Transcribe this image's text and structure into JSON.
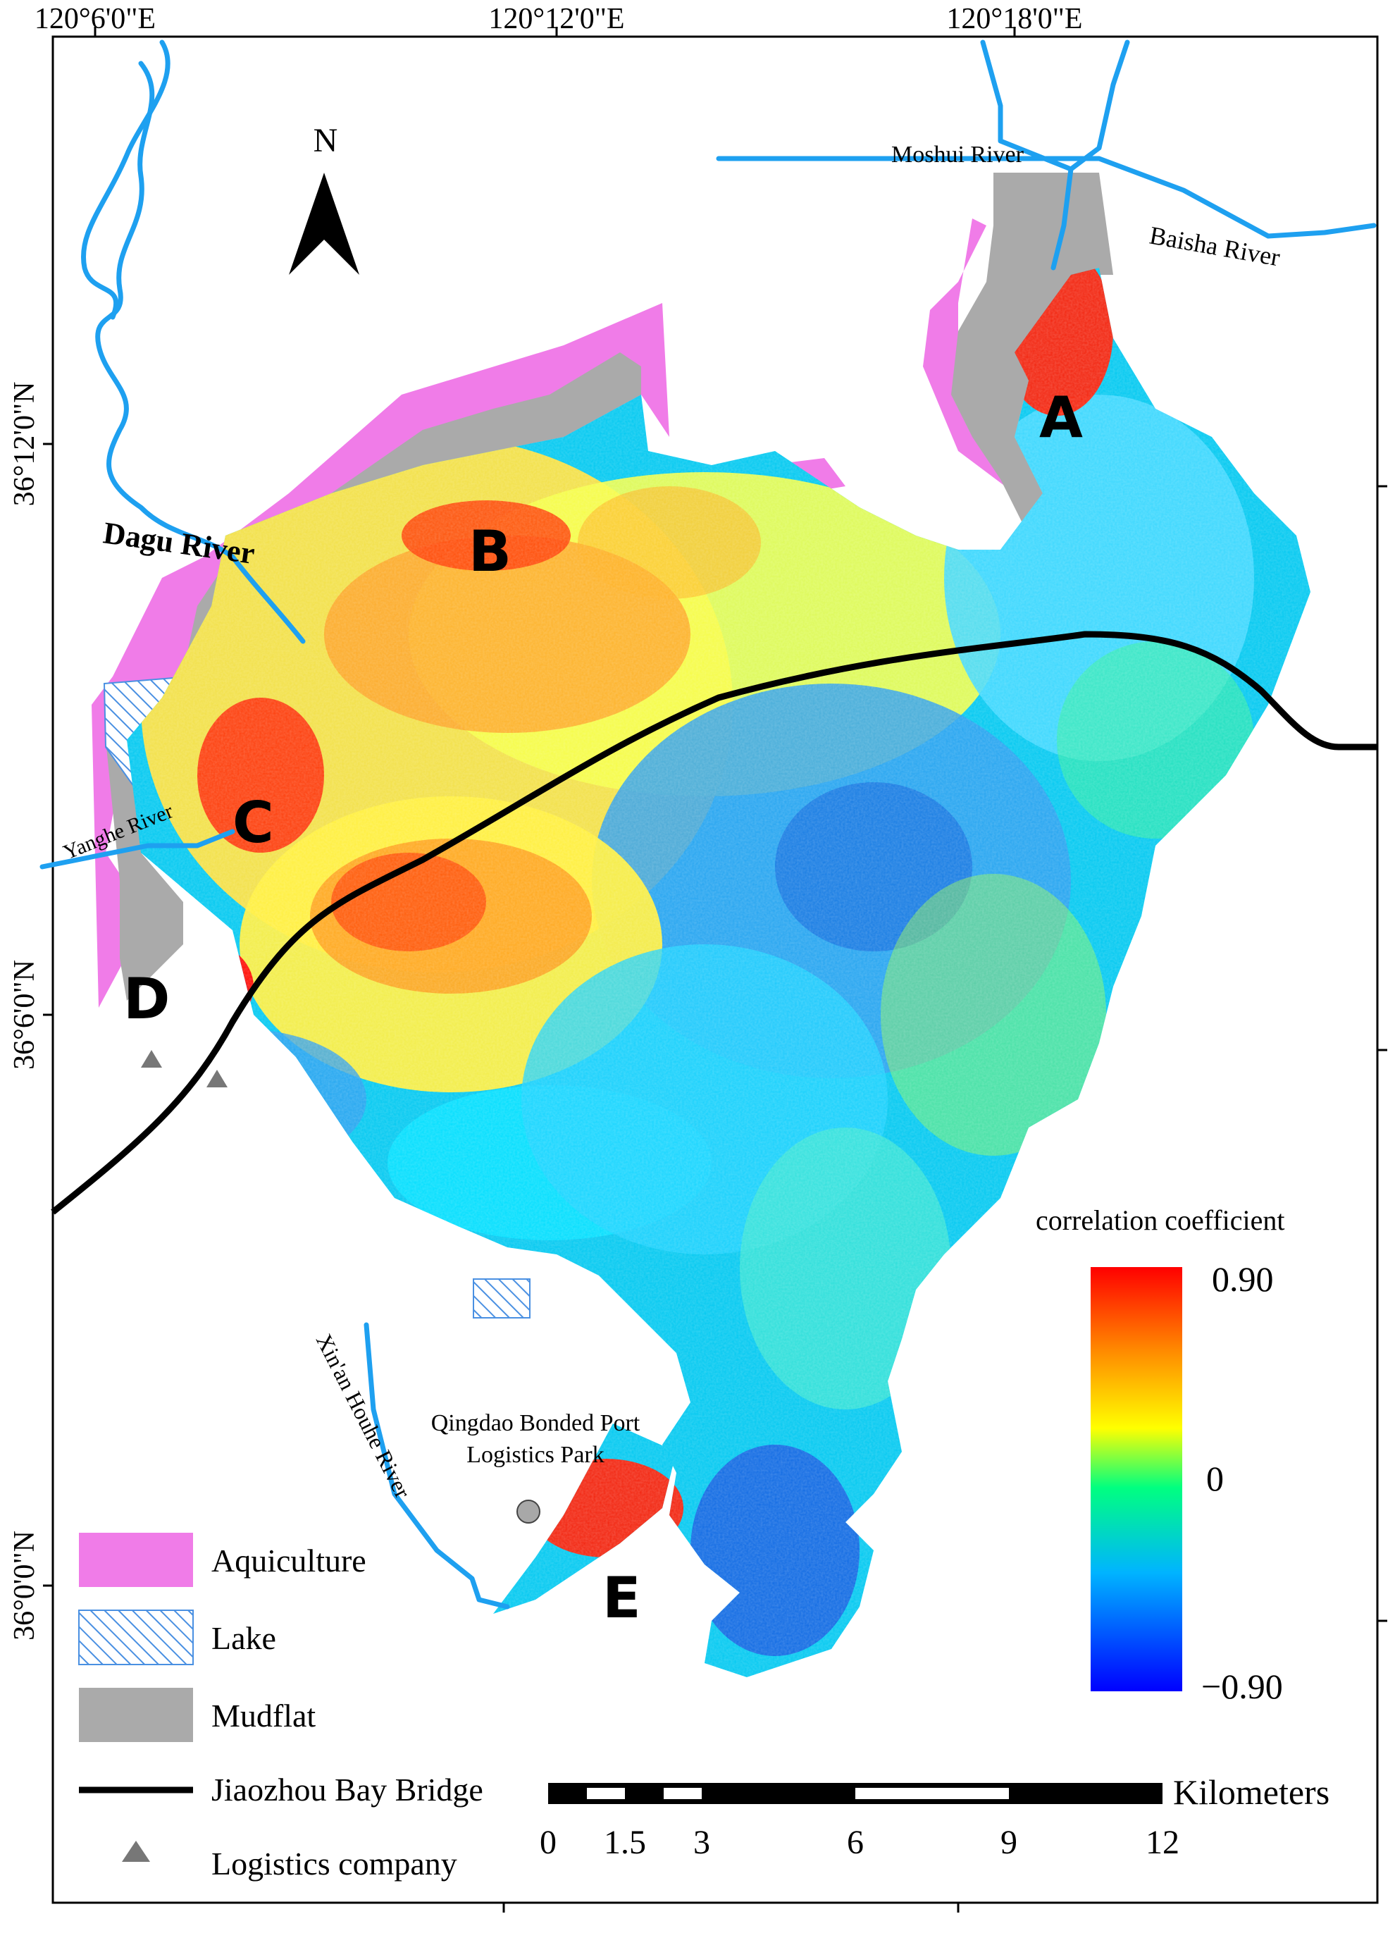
{
  "coordinates": {
    "top_ticks": [
      "120°6'0\"E",
      "120°12'0\"E",
      "120°18'0\"E"
    ],
    "left_ticks": [
      "36°12'0\"N",
      "36°6'0\"N",
      "36°0'0\"N"
    ]
  },
  "north_arrow": {
    "label": "N"
  },
  "rivers": {
    "moshui": "Moshui River",
    "baisha": "Baisha River",
    "dagu": "Dagu River",
    "yanghe": "Yanghe River",
    "xinan": "Xin'an Houhe River"
  },
  "zone_labels": {
    "a": "A",
    "b": "B",
    "c": "C",
    "d": "D",
    "e": "E"
  },
  "poi": {
    "port_line1": "Qingdao Bonded Port",
    "port_line2": "Logistics Park"
  },
  "colorbar": {
    "title": "correlation coefficient",
    "max": "0.90",
    "mid": "0",
    "min": "−0.90",
    "colors": [
      "#0000ff",
      "#00b4ff",
      "#00ff80",
      "#ffff00",
      "#ff8c00",
      "#ff0000"
    ]
  },
  "legend": {
    "aquiculture": "Aquiculture",
    "lake": "Lake",
    "mudflat": "Mudflat",
    "bridge": "Jiaozhou Bay Bridge",
    "logistics": "Logistics company"
  },
  "scalebar": {
    "unit": "Kilometers",
    "ticks": [
      "0",
      "1.5",
      "3",
      "6",
      "9",
      "12"
    ]
  },
  "colors": {
    "aquiculture": "#f07ce8",
    "mudflat": "#aaaaaa",
    "river": "#1ea0f0",
    "bridge": "#000000"
  }
}
